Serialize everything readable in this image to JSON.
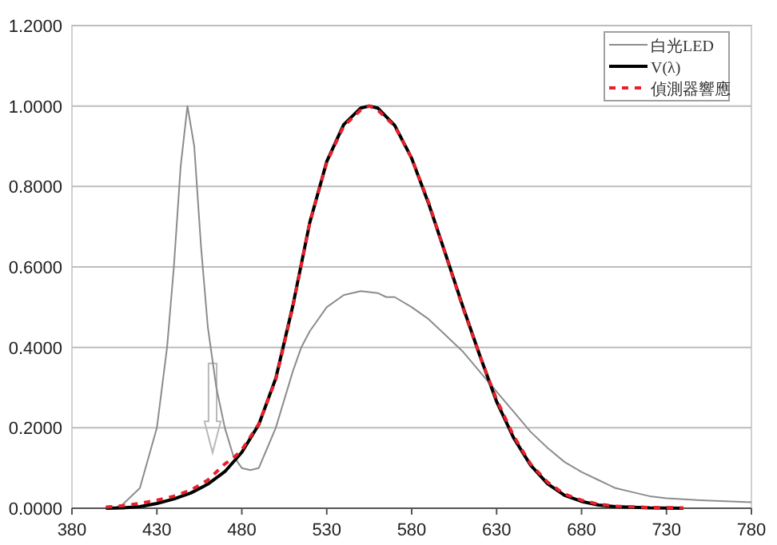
{
  "chart_data": {
    "type": "line",
    "xlim": [
      380,
      780
    ],
    "xticks": [
      380,
      430,
      480,
      530,
      580,
      630,
      680,
      730,
      780
    ],
    "ylim": [
      0,
      1.2
    ],
    "yticks": [
      {
        "value": 0,
        "label": "0.0000"
      },
      {
        "value": 0.2,
        "label": "0.2000"
      },
      {
        "value": 0.4,
        "label": "0.4000"
      },
      {
        "value": 0.6,
        "label": "0.6000"
      },
      {
        "value": 0.8,
        "label": "0.8000"
      },
      {
        "value": 1.0,
        "label": "1.0000"
      },
      {
        "value": 1.2,
        "label": "1.2000"
      }
    ],
    "grid": "y",
    "legend": "top right",
    "marker": "none",
    "series": [
      {
        "name": "白光LED",
        "color": "#8c8c8c",
        "line_style": "solid",
        "x": [
          405,
          410,
          420,
          430,
          436,
          440,
          444,
          448,
          452,
          456,
          460,
          465,
          470,
          475,
          480,
          485,
          490,
          495,
          500,
          505,
          510,
          515,
          520,
          530,
          540,
          550,
          560,
          565,
          570,
          580,
          590,
          600,
          610,
          620,
          630,
          640,
          650,
          660,
          670,
          680,
          690,
          700,
          710,
          720,
          730,
          750,
          780
        ],
        "values": [
          0,
          0.01,
          0.05,
          0.2,
          0.4,
          0.6,
          0.85,
          1.0,
          0.9,
          0.65,
          0.45,
          0.3,
          0.2,
          0.13,
          0.1,
          0.095,
          0.1,
          0.15,
          0.2,
          0.27,
          0.34,
          0.4,
          0.44,
          0.5,
          0.53,
          0.54,
          0.535,
          0.525,
          0.525,
          0.5,
          0.47,
          0.43,
          0.39,
          0.34,
          0.29,
          0.24,
          0.19,
          0.15,
          0.115,
          0.09,
          0.07,
          0.05,
          0.04,
          0.03,
          0.025,
          0.02,
          0.015
        ]
      },
      {
        "name": "V(λ)",
        "color": "#000000",
        "line_style": "solid",
        "x": [
          400,
          410,
          420,
          430,
          440,
          450,
          460,
          470,
          480,
          490,
          500,
          510,
          520,
          530,
          540,
          550,
          555,
          560,
          570,
          580,
          590,
          600,
          610,
          620,
          630,
          640,
          650,
          660,
          670,
          680,
          690,
          700,
          720,
          740
        ],
        "values": [
          0,
          0.001,
          0.004,
          0.012,
          0.023,
          0.038,
          0.06,
          0.091,
          0.139,
          0.208,
          0.323,
          0.503,
          0.71,
          0.862,
          0.954,
          0.995,
          1.0,
          0.995,
          0.952,
          0.87,
          0.757,
          0.631,
          0.503,
          0.381,
          0.265,
          0.175,
          0.107,
          0.061,
          0.032,
          0.017,
          0.008,
          0.004,
          0.001,
          0
        ]
      },
      {
        "name": "偵測器響應",
        "color": "#e8202a",
        "line_style": "dashed",
        "x": [
          400,
          410,
          420,
          430,
          440,
          450,
          460,
          470,
          475,
          480,
          490,
          500,
          510,
          520,
          530,
          540,
          550,
          555,
          560,
          570,
          580,
          590,
          600,
          610,
          620,
          630,
          640,
          650,
          660,
          670,
          680,
          690,
          700,
          720,
          740
        ],
        "values": [
          0.003,
          0.006,
          0.012,
          0.02,
          0.03,
          0.045,
          0.07,
          0.11,
          0.125,
          0.145,
          0.21,
          0.32,
          0.5,
          0.71,
          0.86,
          0.95,
          0.99,
          1.0,
          0.99,
          0.95,
          0.87,
          0.76,
          0.63,
          0.5,
          0.38,
          0.27,
          0.18,
          0.11,
          0.065,
          0.035,
          0.02,
          0.01,
          0.005,
          0.002,
          0.001
        ]
      }
    ]
  }
}
